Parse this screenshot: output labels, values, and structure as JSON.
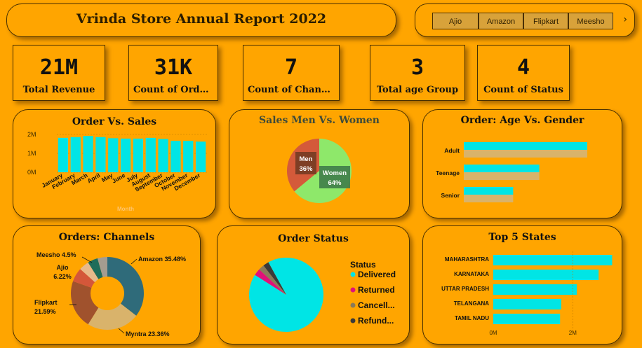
{
  "header": {
    "title": "Vrinda Store Annual Report 2022"
  },
  "slicer": {
    "items": [
      "Ajio",
      "Amazon",
      "Flipkart",
      "Meesho"
    ],
    "next_icon": "chevron-right-icon"
  },
  "kpis": [
    {
      "value": "21M",
      "label": "Total Revenue"
    },
    {
      "value": "31K",
      "label": "Count of Order..."
    },
    {
      "value": "7",
      "label": "Count of Channel"
    },
    {
      "value": "3",
      "label": "Total age Group"
    },
    {
      "value": "4",
      "label": "Count of Status"
    }
  ],
  "panels": {
    "orders_sales": "Order Vs. Sales",
    "men_women": "Sales Men Vs. Women",
    "age_gender": "Order: Age Vs. Gender",
    "channels": "Orders: Channels",
    "status": "Order Status",
    "states": "Top 5 States"
  },
  "colors": {
    "background": "#FFA500",
    "cyan": "#00E5E5",
    "teal": "#2F6B7A",
    "green": "#8EE86A",
    "red": "#D45A3A",
    "tan": "#D9B36B"
  },
  "chart_data": [
    {
      "id": "order_vs_sales",
      "type": "bar",
      "categories": [
        "January",
        "February",
        "March",
        "April",
        "May",
        "June",
        "July",
        "August",
        "September",
        "October",
        "November",
        "December"
      ],
      "values": [
        1.82,
        1.86,
        1.92,
        1.86,
        1.8,
        1.78,
        1.78,
        1.82,
        1.76,
        1.66,
        1.66,
        1.62
      ],
      "xlabel": "Month",
      "ylabel": "",
      "yticks": [
        "0M",
        "1M",
        "2M"
      ],
      "ylim": [
        0,
        2
      ]
    },
    {
      "id": "sales_men_women",
      "type": "pie",
      "categories": [
        "Men",
        "Women"
      ],
      "values": [
        36,
        64
      ],
      "labels": [
        "36%",
        "64%"
      ]
    },
    {
      "id": "age_vs_gender",
      "type": "bar",
      "orientation": "horizontal",
      "categories": [
        "Adult",
        "Teenage",
        "Senior"
      ],
      "series": [
        {
          "values": [
            0.85,
            0.52,
            0.34
          ]
        },
        {
          "values": [
            0.85,
            0.52,
            0.34
          ]
        }
      ]
    },
    {
      "id": "orders_channels",
      "type": "pie",
      "donut": true,
      "categories": [
        "Amazon",
        "Myntra",
        "Flipkart",
        "Ajio",
        "Meesho",
        "Others1",
        "Others2"
      ],
      "values": [
        35.48,
        23.36,
        21.59,
        6.22,
        4.5,
        4.5,
        4.35
      ],
      "labels": [
        "Amazon 35.48%",
        "Myntra 23.36%",
        "Flipkart\n21.59%",
        "Ajio\n6.22%",
        "Meesho 4.5%",
        "",
        ""
      ]
    },
    {
      "id": "order_status",
      "type": "pie",
      "legend_title": "Status",
      "categories": [
        "Delivered",
        "Returned",
        "Cancell...",
        "Refund..."
      ],
      "values": [
        92,
        3,
        2.5,
        2.5
      ]
    },
    {
      "id": "top5_states",
      "type": "bar",
      "orientation": "horizontal",
      "categories": [
        "MAHARASHTRA",
        "KARNATAKA",
        "UTTAR PRADESH",
        "TELANGANA",
        "TAMIL NADU"
      ],
      "values": [
        2.99,
        2.65,
        2.1,
        1.71,
        1.68
      ],
      "xticks": [
        "0M",
        "2M"
      ],
      "xlim": [
        0,
        3
      ]
    }
  ]
}
